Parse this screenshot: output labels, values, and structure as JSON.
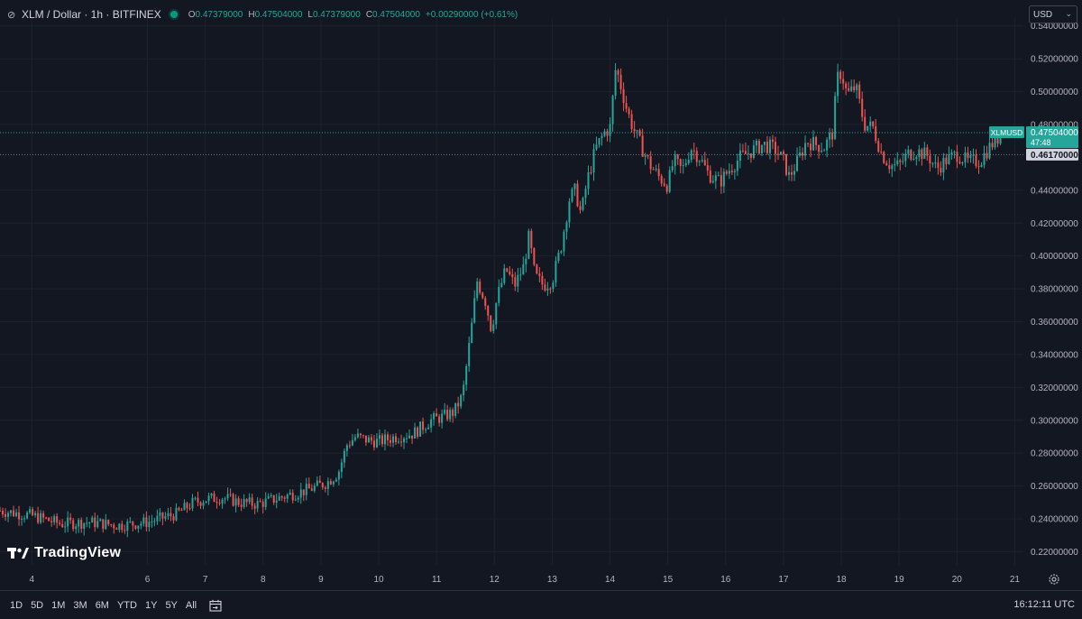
{
  "header": {
    "symbol": "XLM / Dollar · 1h · BITFINEX",
    "ohlc": {
      "o_label": "O",
      "o": "0.47379000",
      "h_label": "H",
      "h": "0.47504000",
      "l_label": "L",
      "l": "0.47379000",
      "c_label": "C",
      "c": "0.47504000",
      "change": "+0.00290000 (+0.61%)"
    },
    "currency": "USD"
  },
  "branding": {
    "logo_text": "TradingView"
  },
  "footer": {
    "ranges": [
      "1D",
      "5D",
      "1M",
      "3M",
      "6M",
      "YTD",
      "1Y",
      "5Y",
      "All"
    ],
    "clock": "16:12:11 UTC"
  },
  "colors": {
    "background": "#131722",
    "up": "#26a69a",
    "down": "#ef5350",
    "grid": "#1e222d",
    "text": "#b2b5be"
  },
  "chart_data": {
    "type": "candlestick",
    "price_ticks": [
      "0.54000000",
      "0.52000000",
      "0.50000000",
      "0.48000000",
      "0.44000000",
      "0.42000000",
      "0.40000000",
      "0.38000000",
      "0.36000000",
      "0.34000000",
      "0.32000000",
      "0.30000000",
      "0.28000000",
      "0.26000000",
      "0.24000000",
      "0.22000000"
    ],
    "ylim": [
      0.212,
      0.5448
    ],
    "date_ticks": [
      {
        "label": "4",
        "day": 4
      },
      {
        "label": "6",
        "day": 6
      },
      {
        "label": "7",
        "day": 7
      },
      {
        "label": "8",
        "day": 8
      },
      {
        "label": "9",
        "day": 9
      },
      {
        "label": "10",
        "day": 10
      },
      {
        "label": "11",
        "day": 11
      },
      {
        "label": "12",
        "day": 12
      },
      {
        "label": "13",
        "day": 13
      },
      {
        "label": "14",
        "day": 14
      },
      {
        "label": "15",
        "day": 15
      },
      {
        "label": "16",
        "day": 16
      },
      {
        "label": "17",
        "day": 17
      },
      {
        "label": "18",
        "day": 18
      },
      {
        "label": "19",
        "day": 19
      },
      {
        "label": "20",
        "day": 20
      },
      {
        "label": "21",
        "day": 21
      }
    ],
    "xlim_days": [
      3.45,
      21.15
    ],
    "symbol_badge": "XLMUSD",
    "last_price": "0.47504000",
    "last_price_value": 0.47504,
    "countdown": "47:48",
    "ref_price": "0.46170000",
    "ref_price_value": 0.4617,
    "close_path": [
      [
        3.45,
        0.245
      ],
      [
        4.0,
        0.242
      ],
      [
        4.5,
        0.237
      ],
      [
        5.0,
        0.238
      ],
      [
        5.5,
        0.236
      ],
      [
        6.0,
        0.238
      ],
      [
        6.5,
        0.243
      ],
      [
        6.8,
        0.25
      ],
      [
        7.0,
        0.252
      ],
      [
        7.3,
        0.253
      ],
      [
        7.6,
        0.25
      ],
      [
        7.9,
        0.249
      ],
      [
        8.2,
        0.252
      ],
      [
        8.5,
        0.255
      ],
      [
        8.8,
        0.258
      ],
      [
        9.1,
        0.262
      ],
      [
        9.3,
        0.268
      ],
      [
        9.45,
        0.285
      ],
      [
        9.6,
        0.29
      ],
      [
        9.8,
        0.288
      ],
      [
        10.0,
        0.287
      ],
      [
        10.3,
        0.29
      ],
      [
        10.6,
        0.292
      ],
      [
        10.9,
        0.3
      ],
      [
        11.1,
        0.302
      ],
      [
        11.3,
        0.305
      ],
      [
        11.45,
        0.315
      ],
      [
        11.6,
        0.355
      ],
      [
        11.7,
        0.385
      ],
      [
        11.85,
        0.372
      ],
      [
        11.95,
        0.355
      ],
      [
        12.05,
        0.375
      ],
      [
        12.2,
        0.392
      ],
      [
        12.35,
        0.382
      ],
      [
        12.5,
        0.393
      ],
      [
        12.6,
        0.412
      ],
      [
        12.7,
        0.388
      ],
      [
        12.85,
        0.382
      ],
      [
        13.0,
        0.385
      ],
      [
        13.15,
        0.405
      ],
      [
        13.3,
        0.435
      ],
      [
        13.4,
        0.44
      ],
      [
        13.5,
        0.425
      ],
      [
        13.6,
        0.445
      ],
      [
        13.75,
        0.465
      ],
      [
        13.9,
        0.475
      ],
      [
        14.0,
        0.478
      ],
      [
        14.1,
        0.515
      ],
      [
        14.2,
        0.502
      ],
      [
        14.3,
        0.488
      ],
      [
        14.4,
        0.478
      ],
      [
        14.55,
        0.466
      ],
      [
        14.7,
        0.455
      ],
      [
        14.85,
        0.448
      ],
      [
        15.0,
        0.443
      ],
      [
        15.1,
        0.458
      ],
      [
        15.25,
        0.452
      ],
      [
        15.4,
        0.466
      ],
      [
        15.55,
        0.46
      ],
      [
        15.7,
        0.45
      ],
      [
        15.9,
        0.445
      ],
      [
        16.05,
        0.452
      ],
      [
        16.25,
        0.46
      ],
      [
        16.45,
        0.464
      ],
      [
        16.65,
        0.468
      ],
      [
        16.85,
        0.465
      ],
      [
        17.0,
        0.458
      ],
      [
        17.1,
        0.448
      ],
      [
        17.25,
        0.458
      ],
      [
        17.4,
        0.47
      ],
      [
        17.55,
        0.468
      ],
      [
        17.7,
        0.466
      ],
      [
        17.85,
        0.475
      ],
      [
        17.93,
        0.508
      ],
      [
        18.0,
        0.512
      ],
      [
        18.1,
        0.498
      ],
      [
        18.25,
        0.503
      ],
      [
        18.4,
        0.48
      ],
      [
        18.55,
        0.478
      ],
      [
        18.7,
        0.462
      ],
      [
        18.85,
        0.455
      ],
      [
        19.0,
        0.455
      ],
      [
        19.15,
        0.462
      ],
      [
        19.3,
        0.464
      ],
      [
        19.5,
        0.461
      ],
      [
        19.65,
        0.453
      ],
      [
        19.8,
        0.458
      ],
      [
        20.0,
        0.462
      ],
      [
        20.2,
        0.457
      ],
      [
        20.4,
        0.458
      ],
      [
        20.6,
        0.468
      ],
      [
        20.8,
        0.475
      ]
    ]
  }
}
